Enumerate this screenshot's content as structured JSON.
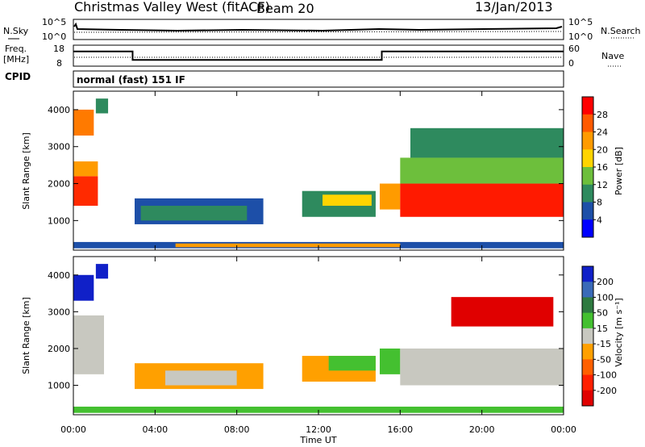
{
  "header": {
    "title": "Christmas Valley West (fitACF)",
    "beam": "Beam 20",
    "date": "13/Jan/2013"
  },
  "noise_panel": {
    "left_label": "N.Sky",
    "right_label": "N.Search",
    "ticks_left": [
      "10^5",
      "10^0"
    ],
    "ticks_right": [
      "10^5",
      "10^0"
    ]
  },
  "freq_panel": {
    "left_label_1": "Freq.",
    "left_label_2": "[MHz]",
    "right_label": "Nave",
    "ticks_left": [
      "18",
      "8"
    ],
    "ticks_right": [
      "60",
      "0"
    ],
    "freq_steps": [
      {
        "from": 0,
        "to": 2.9,
        "mhz": 15
      },
      {
        "from": 2.9,
        "to": 15.1,
        "mhz": 11
      },
      {
        "from": 15.1,
        "to": 24,
        "mhz": 15
      }
    ]
  },
  "cpid": {
    "label": "CPID",
    "mode": "normal (fast) 151 IF"
  },
  "power_panel": {
    "ylabel": "Slant Range [km]",
    "cbar_label": "Power [dB]",
    "cbar_ticks": [
      "28",
      "24",
      "20",
      "16",
      "12",
      "8",
      "4"
    ],
    "cbar_colors": [
      "#ff0000",
      "#ff5a00",
      "#ff9b00",
      "#ffd400",
      "#6dbf3c",
      "#2e8a5e",
      "#1d4fa8",
      "#0000ff"
    ]
  },
  "velocity_panel": {
    "ylabel": "Slant Range [km]",
    "cbar_label": "Velocity [m s⁻¹]",
    "cbar_ticks": [
      "200",
      "100",
      "50",
      "15",
      "-15",
      "-50",
      "-100",
      "-200"
    ],
    "cbar_colors": [
      "#1020c8",
      "#3a6ab8",
      "#2e7a40",
      "#44c030",
      "#c8c8c0",
      "#ffa000",
      "#ff6000",
      "#ff2000",
      "#e00000"
    ]
  },
  "chart_data": {
    "type": "heatmap",
    "xlabel": "Time UT",
    "x_ticks": [
      "00:00",
      "04:00",
      "08:00",
      "12:00",
      "16:00",
      "20:00",
      "00:00"
    ],
    "xlim_hours": [
      0,
      24
    ],
    "y_ticks": [
      "1000",
      "2000",
      "3000",
      "4000"
    ],
    "ylim_km": [
      200,
      4500
    ],
    "power_regions": [
      {
        "t0": 0.0,
        "t1": 1.2,
        "r0": 1400,
        "r1": 2200,
        "color": "#ff2a00"
      },
      {
        "t0": 0.0,
        "t1": 1.2,
        "r0": 2200,
        "r1": 2600,
        "color": "#ff9b00"
      },
      {
        "t0": 0.0,
        "t1": 1.0,
        "r0": 3300,
        "r1": 4000,
        "color": "#ff7a00"
      },
      {
        "t0": 1.1,
        "t1": 1.7,
        "r0": 3900,
        "r1": 4300,
        "color": "#2e8a5e"
      },
      {
        "t0": 3.0,
        "t1": 9.3,
        "r0": 900,
        "r1": 1600,
        "color": "#1d4fa8"
      },
      {
        "t0": 3.3,
        "t1": 8.5,
        "r0": 1000,
        "r1": 1400,
        "color": "#2e8a5e"
      },
      {
        "t0": 11.2,
        "t1": 14.8,
        "r0": 1100,
        "r1": 1800,
        "color": "#2e8a5e"
      },
      {
        "t0": 12.2,
        "t1": 14.6,
        "r0": 1400,
        "r1": 1700,
        "color": "#ffd400"
      },
      {
        "t0": 15.0,
        "t1": 16.0,
        "r0": 1300,
        "r1": 2000,
        "color": "#ff9b00"
      },
      {
        "t0": 16.0,
        "t1": 24.0,
        "r0": 2000,
        "r1": 2700,
        "color": "#6dbf3c"
      },
      {
        "t0": 16.0,
        "t1": 24.0,
        "r0": 1100,
        "r1": 2000,
        "color": "#ff1a00"
      },
      {
        "t0": 16.5,
        "t1": 24.0,
        "r0": 2700,
        "r1": 3500,
        "color": "#2e8a5e"
      },
      {
        "t0": 0.0,
        "t1": 24.0,
        "r0": 250,
        "r1": 420,
        "color": "#1d4fa8"
      },
      {
        "t0": 5.0,
        "t1": 16.0,
        "r0": 280,
        "r1": 380,
        "color": "#ff9b00"
      }
    ],
    "velocity_regions": [
      {
        "t0": 0.0,
        "t1": 1.5,
        "r0": 1300,
        "r1": 2900,
        "color": "#c8c8c0"
      },
      {
        "t0": 0.0,
        "t1": 1.0,
        "r0": 3300,
        "r1": 4000,
        "color": "#1020c8"
      },
      {
        "t0": 1.1,
        "t1": 1.7,
        "r0": 3900,
        "r1": 4300,
        "color": "#1020c8"
      },
      {
        "t0": 3.0,
        "t1": 9.3,
        "r0": 900,
        "r1": 1600,
        "color": "#ffa000"
      },
      {
        "t0": 4.5,
        "t1": 8.0,
        "r0": 1000,
        "r1": 1400,
        "color": "#c8c8c0"
      },
      {
        "t0": 11.2,
        "t1": 14.8,
        "r0": 1100,
        "r1": 1800,
        "color": "#ffa000"
      },
      {
        "t0": 12.5,
        "t1": 14.8,
        "r0": 1400,
        "r1": 1800,
        "color": "#44c030"
      },
      {
        "t0": 15.0,
        "t1": 16.0,
        "r0": 1300,
        "r1": 2000,
        "color": "#44c030"
      },
      {
        "t0": 16.0,
        "t1": 24.0,
        "r0": 1000,
        "r1": 2000,
        "color": "#c8c8c0"
      },
      {
        "t0": 18.5,
        "t1": 23.5,
        "r0": 2600,
        "r1": 3400,
        "color": "#e00000"
      },
      {
        "t0": 0.0,
        "t1": 24.0,
        "r0": 250,
        "r1": 420,
        "color": "#44c030"
      }
    ]
  }
}
